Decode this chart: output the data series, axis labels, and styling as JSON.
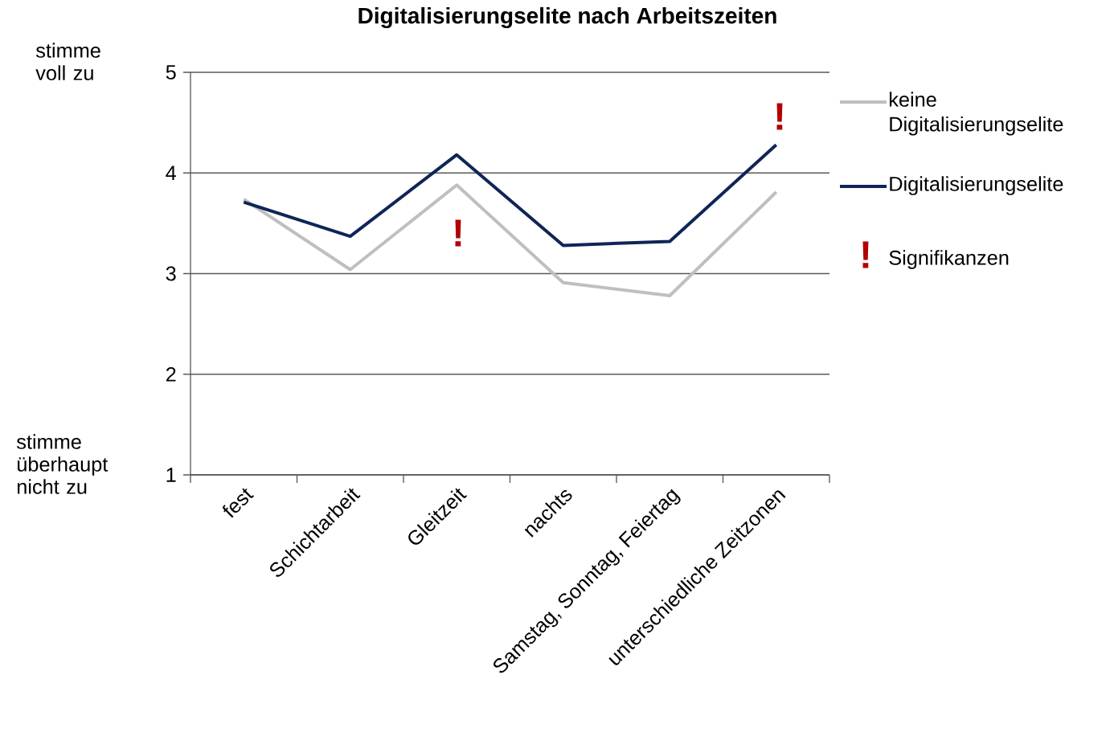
{
  "chart_data": {
    "type": "line",
    "title": "Digitalisierungselite nach Arbeitszeiten",
    "categories": [
      "fest",
      "Schichtarbeit",
      "Gleitzeit",
      "nachts",
      "Samstag, Sonntag, Feiertag",
      "unterschiedliche Zeitzonen"
    ],
    "series": [
      {
        "name": "keine Digitalisierungselite",
        "color": "#bfbfbf",
        "values": [
          3.74,
          3.04,
          3.88,
          2.91,
          2.78,
          3.81
        ]
      },
      {
        "name": "Digitalisierungselite",
        "color": "#0f2557",
        "values": [
          3.71,
          3.37,
          4.18,
          3.28,
          3.32,
          4.28
        ]
      }
    ],
    "ylim": [
      1,
      5
    ],
    "yticks": [
      1,
      2,
      3,
      4,
      5
    ],
    "grid": "y",
    "legend": "right",
    "marker": "none",
    "annotations": [
      "!",
      "!",
      "Signifikanzen",
      "stimme voll zu",
      "stimme überhaupt nicht zu"
    ]
  }
}
